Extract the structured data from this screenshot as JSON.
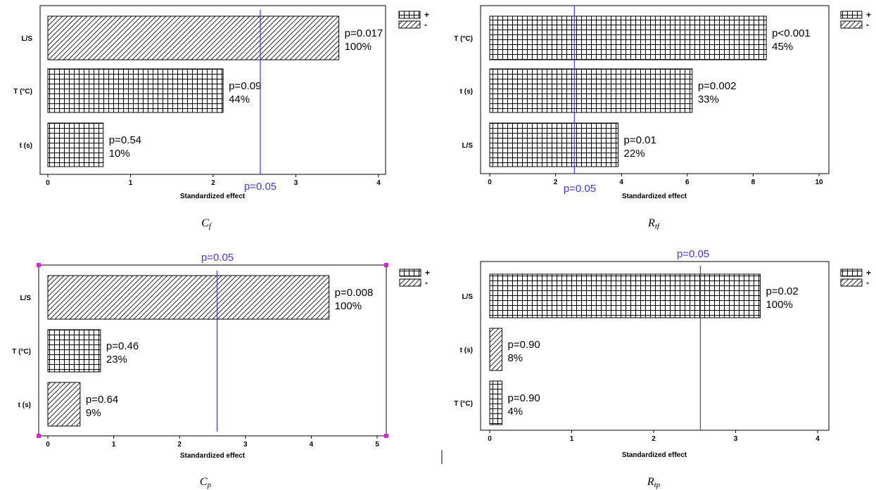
{
  "colors": {
    "ref_line": "#3b3bd6",
    "frame": "#000000",
    "handle": "#e020e0"
  },
  "legend": [
    {
      "symbol": "+",
      "pattern": "grid"
    },
    {
      "symbol": "-",
      "pattern": "hatch"
    }
  ],
  "chart_data": [
    {
      "type": "bar",
      "orientation": "horizontal",
      "sublabel": "C_f",
      "xlabel": "Standardized effect",
      "xlim": [
        0,
        4
      ],
      "xticks": [
        0,
        1,
        2,
        3,
        4
      ],
      "ref_value": 2.57,
      "ref_label": "p=0.05",
      "bars": [
        {
          "category": "L/S",
          "value": 3.52,
          "sign": "-",
          "p": "p=0.017",
          "pct": "100%"
        },
        {
          "category": "T (°C)",
          "value": 2.12,
          "sign": "+",
          "p": "p=0.09",
          "pct": "44%"
        },
        {
          "category": "t (s)",
          "value": 0.67,
          "sign": "+",
          "p": "p=0.54",
          "pct": "10%"
        }
      ]
    },
    {
      "type": "bar",
      "orientation": "horizontal",
      "sublabel": "R_tf",
      "xlabel": "Standardized effect",
      "xlim": [
        0,
        10
      ],
      "xticks": [
        0,
        2,
        4,
        6,
        8,
        10
      ],
      "ref_value": 2.57,
      "ref_label": "p=0.05",
      "bars": [
        {
          "category": "T (°C)",
          "value": 8.4,
          "sign": "+",
          "p": "p<0.001",
          "pct": "45%"
        },
        {
          "category": "t (s)",
          "value": 6.15,
          "sign": "+",
          "p": "p=0.002",
          "pct": "33%"
        },
        {
          "category": "L/S",
          "value": 3.9,
          "sign": "+",
          "p": "p=0.01",
          "pct": "22%"
        }
      ]
    },
    {
      "type": "bar",
      "orientation": "horizontal",
      "sublabel": "C_p",
      "xlabel": "Standardized effect",
      "xlim": [
        0,
        5
      ],
      "xticks": [
        0,
        1,
        2,
        3,
        4,
        5
      ],
      "ref_value": 2.57,
      "ref_label": "p=0.05",
      "bars": [
        {
          "category": "L/S",
          "value": 4.27,
          "sign": "-",
          "p": "p=0.008",
          "pct": "100%"
        },
        {
          "category": "T (°C)",
          "value": 0.8,
          "sign": "+",
          "p": "p=0.46",
          "pct": "23%"
        },
        {
          "category": "t (s)",
          "value": 0.49,
          "sign": "-",
          "p": "p=0.64",
          "pct": "9%"
        }
      ]
    },
    {
      "type": "bar",
      "orientation": "horizontal",
      "sublabel": "R_tp",
      "xlabel": "Standardized effect",
      "xlim": [
        0,
        4
      ],
      "xticks": [
        0,
        1,
        2,
        3,
        4
      ],
      "ref_value": 2.57,
      "ref_label": "p=0.05",
      "bars": [
        {
          "category": "L/S",
          "value": 3.3,
          "sign": "+",
          "p": "p=0.02",
          "pct": "100%"
        },
        {
          "category": "t (s)",
          "value": 0.15,
          "sign": "-",
          "p": "p=0.90",
          "pct": "8%"
        },
        {
          "category": "T (°C)",
          "value": 0.15,
          "sign": "+",
          "p": "p=0.90",
          "pct": "4%"
        }
      ]
    }
  ]
}
